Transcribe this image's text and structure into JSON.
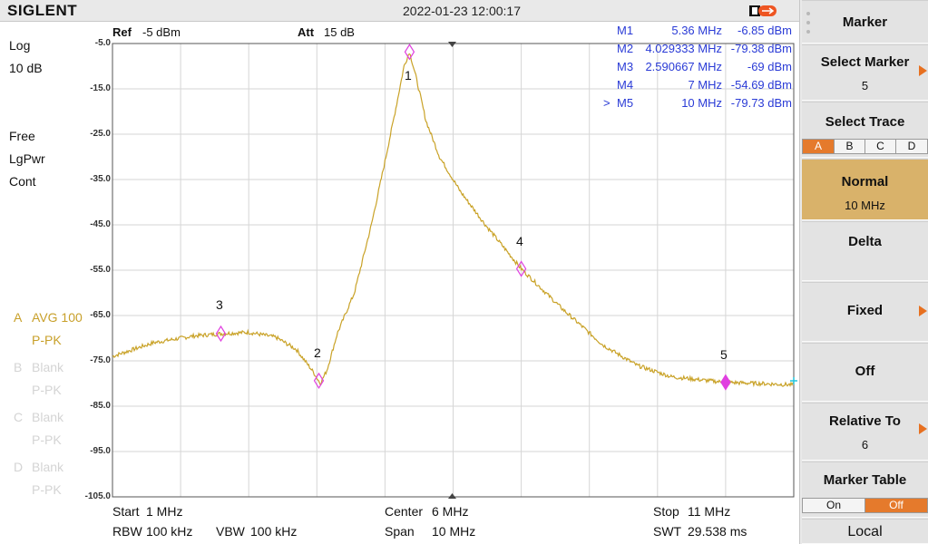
{
  "topbar": {
    "brand": "SIGLENT",
    "datetime": "2022-01-23 12:00:17"
  },
  "left_panel": {
    "scale_type": "Log",
    "scale_div": "10 dB",
    "sweep_mode": "Free",
    "detector_mode": "LgPwr",
    "sweep_run": "Cont",
    "traces": [
      {
        "letter": "A",
        "name": "AVG 100",
        "det": "P-PK"
      },
      {
        "letter": "B",
        "name": "Blank",
        "det": "P-PK"
      },
      {
        "letter": "C",
        "name": "Blank",
        "det": "P-PK"
      },
      {
        "letter": "D",
        "name": "Blank",
        "det": "P-PK"
      }
    ]
  },
  "header": {
    "ref_label": "Ref",
    "ref_value": "-5 dBm",
    "att_label": "Att",
    "att_value": "15 dB"
  },
  "y_axis": {
    "ticks": [
      "-5.0",
      "-15.0",
      "-25.0",
      "-35.0",
      "-45.0",
      "-55.0",
      "-65.0",
      "-75.0",
      "-85.0",
      "-95.0",
      "-105.0"
    ]
  },
  "marker_table": [
    {
      "sel": "",
      "name": "M1",
      "freq": "5.36 MHz",
      "level": "-6.85 dBm"
    },
    {
      "sel": "",
      "name": "M2",
      "freq": "4.029333 MHz",
      "level": "-79.38 dBm"
    },
    {
      "sel": "",
      "name": "M3",
      "freq": "2.590667 MHz",
      "level": "-69 dBm"
    },
    {
      "sel": "",
      "name": "M4",
      "freq": "7 MHz",
      "level": "-54.69 dBm"
    },
    {
      "sel": ">",
      "name": "M5",
      "freq": "10 MHz",
      "level": "-79.73 dBm"
    }
  ],
  "marker_labels": [
    "1",
    "2",
    "3",
    "4",
    "5"
  ],
  "bottom": {
    "start_label": "Start",
    "start_value": "1 MHz",
    "center_label": "Center",
    "center_value": "6 MHz",
    "stop_label": "Stop",
    "stop_value": "11 MHz",
    "rbw_label": "RBW",
    "rbw_value": "100 kHz",
    "vbw_label": "VBW",
    "vbw_value": "100 kHz",
    "span_label": "Span",
    "span_value": "10 MHz",
    "swt_label": "SWT",
    "swt_value": "29.538 ms"
  },
  "menu": {
    "title": "Marker",
    "select_marker": {
      "label": "Select Marker",
      "value": "5"
    },
    "select_trace": {
      "label": "Select Trace",
      "options": [
        "A",
        "B",
        "C",
        "D"
      ],
      "selected": "A"
    },
    "normal": {
      "label": "Normal",
      "value": "10 MHz"
    },
    "delta": {
      "label": "Delta"
    },
    "fixed": {
      "label": "Fixed"
    },
    "off": {
      "label": "Off"
    },
    "relative_to": {
      "label": "Relative To",
      "value": "6"
    },
    "marker_table": {
      "label": "Marker Table",
      "on": "On",
      "off": "Off",
      "selected": "Off"
    },
    "local": {
      "label": "Local"
    }
  },
  "colors": {
    "trace": "#c9a227",
    "marker_text": "#2a3bd6",
    "accent": "#e57a2c",
    "active_button": "#d9b26a",
    "marker_diamond": "#e040e0"
  }
}
